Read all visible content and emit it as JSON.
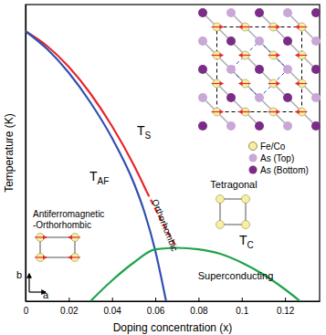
{
  "chart_data": {
    "type": "line",
    "x_label": "Doping concentration (x)",
    "y_label": "Temperature (K)",
    "xlim": [
      0,
      0.136
    ],
    "xticks": [
      0,
      0.02,
      0.04,
      0.06,
      0.08,
      0.1,
      0.12
    ],
    "ylim": [
      0,
      1
    ],
    "yticks": [],
    "tick_labels": "x",
    "grid": false,
    "series": [
      {
        "name": "TS",
        "color": "#e8252a",
        "line_style": "solid",
        "x": [
          0,
          0.01,
          0.02,
          0.03,
          0.04,
          0.05,
          0.056
        ],
        "values": [
          0.91,
          0.86,
          0.79,
          0.7,
          0.59,
          0.46,
          0.37
        ]
      },
      {
        "color": "#e8252a",
        "line_style": "dashed",
        "x": [
          0.056,
          0.063,
          0.07
        ],
        "values": [
          0.37,
          0.27,
          0.18
        ]
      },
      {
        "name": "TAF",
        "color": "#3050b0",
        "line_style": "solid",
        "x": [
          0,
          0.01,
          0.02,
          0.03,
          0.04,
          0.05,
          0.055,
          0.06,
          0.065
        ],
        "values": [
          0.91,
          0.85,
          0.77,
          0.67,
          0.55,
          0.4,
          0.3,
          0.17,
          0
        ]
      },
      {
        "name": "TC",
        "color": "#1ea34a",
        "line_style": "solid",
        "x": [
          0.03,
          0.04,
          0.05,
          0.06,
          0.07,
          0.08,
          0.09,
          0.1,
          0.11,
          0.12,
          0.127
        ],
        "values": [
          0,
          0.07,
          0.13,
          0.175,
          0.18,
          0.175,
          0.16,
          0.13,
          0.09,
          0.04,
          0
        ]
      }
    ],
    "annotations": [
      "Orthorhombic",
      "Tetragonal",
      "Superconducting",
      "Antiferromagnetic",
      "-Orthorhombic",
      "b",
      "a",
      "Fe/Co",
      "As (Top)",
      "As (Bottom)"
    ]
  }
}
